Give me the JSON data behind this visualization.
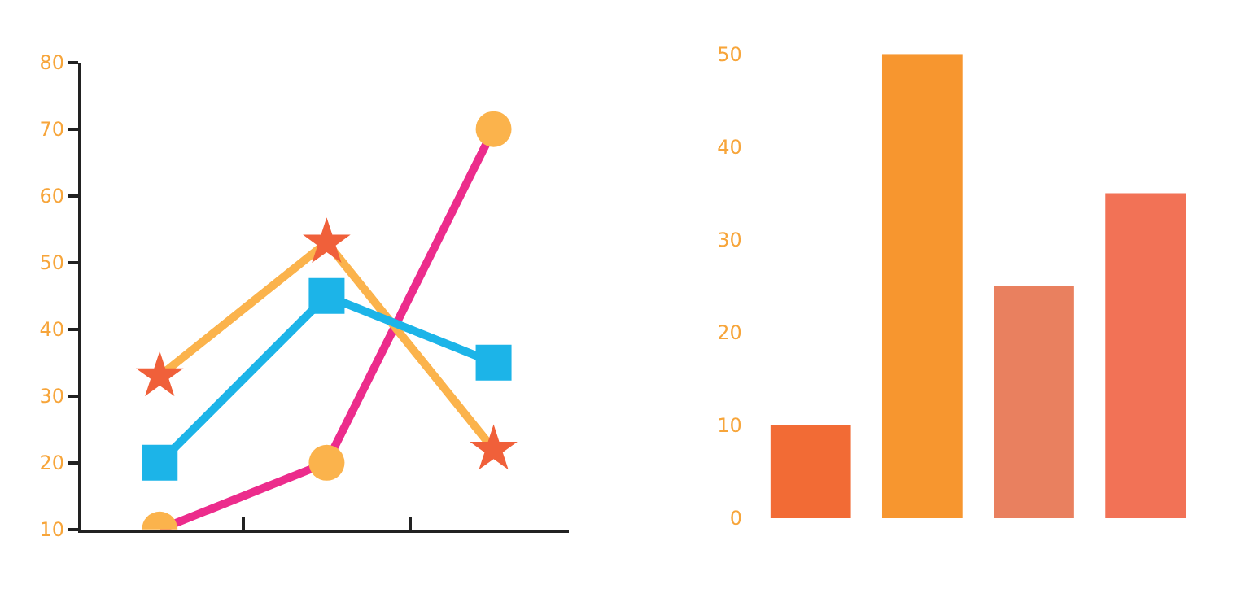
{
  "chart_data": [
    {
      "type": "line",
      "categories": [
        null,
        null,
        null
      ],
      "ylim": [
        10,
        80
      ],
      "yticks": [
        10,
        20,
        30,
        40,
        50,
        60,
        70,
        80
      ],
      "tick_labels": "y",
      "line_style": "solid",
      "series": [
        {
          "color": "#ec2c8c",
          "colors": [
            "#fbb34c",
            "#fbb34c",
            "#fbb34c"
          ],
          "marker": "circle",
          "values": [
            10,
            20,
            70
          ]
        },
        {
          "color": "#fbb34c",
          "colors": [
            "#f0603a",
            "#f0603a",
            "#f0603a"
          ],
          "marker": "star",
          "values": [
            33,
            53,
            22
          ]
        },
        {
          "color": "#1cb4e8",
          "colors": [
            "#1cb4e8",
            "#1cb4e8",
            "#1cb4e8"
          ],
          "marker": "square",
          "values": [
            20,
            45,
            35
          ]
        }
      ]
    },
    {
      "type": "bar",
      "categories": [
        null,
        null,
        null,
        null
      ],
      "values": [
        10,
        50,
        25,
        35
      ],
      "colors": [
        "#f26b35",
        "#f7962f",
        "#e9805f",
        "#f27256"
      ],
      "ylim": [
        0,
        50
      ],
      "yticks": [
        0,
        10,
        20,
        30,
        40,
        50
      ],
      "tick_labels": "y"
    }
  ]
}
